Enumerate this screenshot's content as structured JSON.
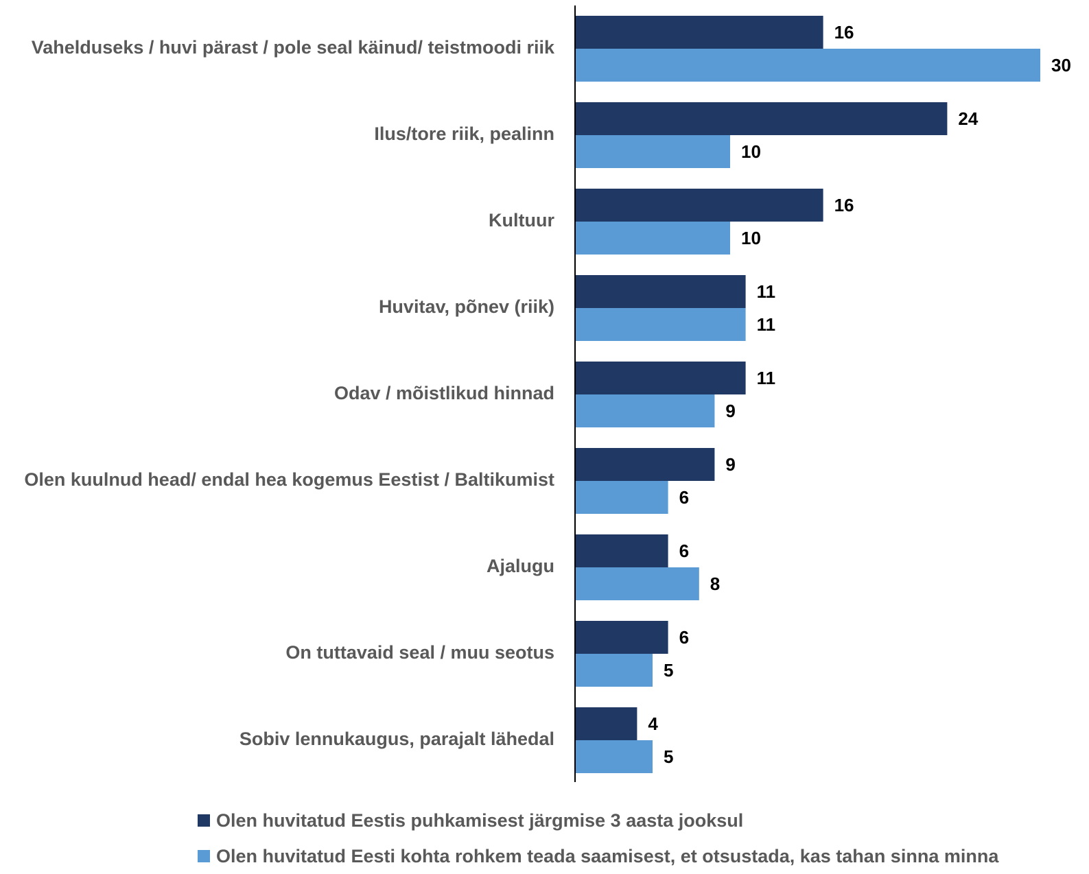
{
  "chart_data": {
    "type": "bar",
    "orientation": "horizontal",
    "categories": [
      "Vahelduseks / huvi pärast / pole seal käinud/ teistmoodi riik",
      "Ilus/tore riik, pealinn",
      "Kultuur",
      "Huvitav, põnev (riik)",
      "Odav / mõistlikud hinnad",
      "Olen kuulnud head/ endal hea kogemus Eestist / Baltikumist",
      "Ajalugu",
      "On tuttavaid seal / muu seotus",
      "Sobiv lennukaugus, parajalt lähedal"
    ],
    "series": [
      {
        "name": "Olen huvitatud Eestis puhkamisest järgmise 3 aasta jooksul",
        "color": "#203864",
        "values": [
          16,
          24,
          16,
          11,
          11,
          9,
          6,
          6,
          4
        ]
      },
      {
        "name": "Olen huvitatud Eesti kohta rohkem teada saamisest, et otsustada, kas tahan sinna minna",
        "color": "#5B9BD5",
        "values": [
          30,
          10,
          10,
          11,
          9,
          6,
          8,
          5,
          5
        ]
      }
    ],
    "xlim": [
      0,
      30
    ],
    "grid": false,
    "legend": "bottom"
  }
}
